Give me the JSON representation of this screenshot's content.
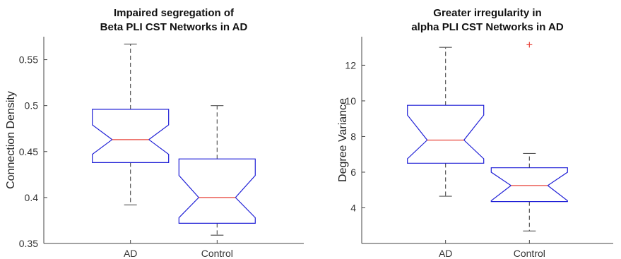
{
  "chart_data": [
    {
      "type": "boxplot",
      "title_lines": [
        "Impaired segregation of",
        "Beta PLI CST Networks in AD"
      ],
      "xlabel": "",
      "ylabel": "Connection Density",
      "ylim": [
        0.35,
        0.575
      ],
      "yticks": [
        0.35,
        0.4,
        0.45,
        0.5,
        0.55
      ],
      "ytick_labels": [
        "0.35",
        "0.4",
        "0.45",
        "0.5",
        "0.55"
      ],
      "notched": true,
      "categories": [
        "AD",
        "Control"
      ],
      "boxes": [
        {
          "category": "AD",
          "whisker_low": 0.392,
          "q1": 0.438,
          "notch_low": 0.447,
          "median": 0.463,
          "notch_high": 0.479,
          "q3": 0.496,
          "whisker_high": 0.567,
          "outliers": []
        },
        {
          "category": "Control",
          "whisker_low": 0.359,
          "q1": 0.372,
          "notch_low": 0.378,
          "median": 0.4,
          "notch_high": 0.424,
          "q3": 0.442,
          "whisker_high": 0.5,
          "outliers": []
        }
      ],
      "colors": {
        "box": "#1f1fd6",
        "median": "#e8453c",
        "whisker": "#555555",
        "outlier": "#e8453c"
      }
    },
    {
      "type": "boxplot",
      "title_lines": [
        "Greater irregularity in",
        "alpha PLI CST Networks in AD"
      ],
      "xlabel": "",
      "ylabel": "Degree Variance",
      "ylim": [
        2.0,
        13.6
      ],
      "yticks": [
        4,
        6,
        8,
        10,
        12
      ],
      "ytick_labels": [
        "4",
        "6",
        "8",
        "10",
        "12"
      ],
      "notched": true,
      "categories": [
        "AD",
        "Control"
      ],
      "boxes": [
        {
          "category": "AD",
          "whisker_low": 4.65,
          "q1": 6.5,
          "notch_low": 6.75,
          "median": 7.8,
          "notch_high": 9.2,
          "q3": 9.75,
          "whisker_high": 13.0,
          "outliers": []
        },
        {
          "category": "Control",
          "whisker_low": 2.7,
          "q1": 4.35,
          "notch_low": 4.4,
          "median": 5.25,
          "notch_high": 6.0,
          "q3": 6.25,
          "whisker_high": 7.05,
          "outliers": [
            13.15
          ]
        }
      ],
      "colors": {
        "box": "#1f1fd6",
        "median": "#e8453c",
        "whisker": "#555555",
        "outlier": "#e8453c"
      }
    }
  ]
}
